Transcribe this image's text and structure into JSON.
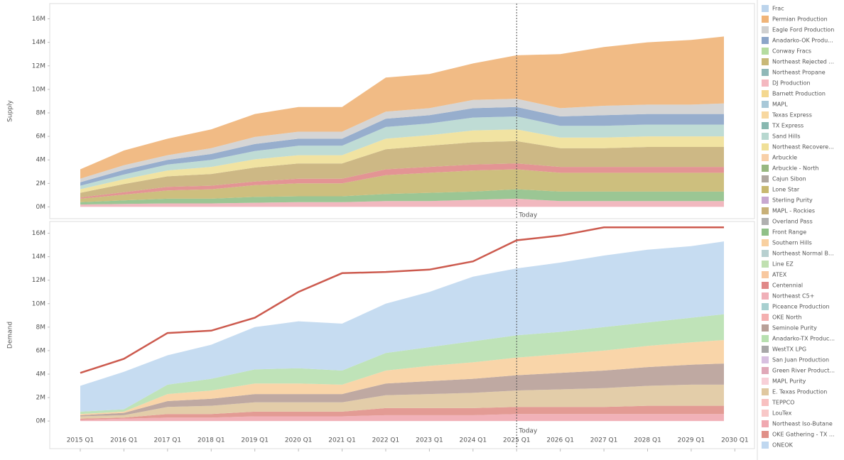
{
  "legend": {
    "items": [
      {
        "name": "Frac",
        "color": "#bcd4ec"
      },
      {
        "name": "Permian Production",
        "color": "#f0b478"
      },
      {
        "name": "Eagle Ford Production",
        "color": "#d0d0d0"
      },
      {
        "name": "Anadarko-OK Produ...",
        "color": "#8ca5c8"
      },
      {
        "name": "Conway Fracs",
        "color": "#b5dca0"
      },
      {
        "name": "Northeast Rejected ...",
        "color": "#c8b878"
      },
      {
        "name": "Northeast Propane",
        "color": "#90b8b8"
      },
      {
        "name": "DJ Production",
        "color": "#f4b8c0"
      },
      {
        "name": "Barnett Production",
        "color": "#f4d890"
      },
      {
        "name": "MAPL",
        "color": "#a8c8d8"
      },
      {
        "name": "Texas Express",
        "color": "#f8d8a0"
      },
      {
        "name": "TX Express",
        "color": "#88b8b0"
      },
      {
        "name": "Sand Hills",
        "color": "#b8d8d0"
      },
      {
        "name": "Northeast Recovere...",
        "color": "#f0e098"
      },
      {
        "name": "Arbuckle",
        "color": "#f8d0a8"
      },
      {
        "name": "Arbuckle - North",
        "color": "#98b880"
      },
      {
        "name": "Cajun Sibon",
        "color": "#b0a8a0"
      },
      {
        "name": "Lone Star",
        "color": "#c8b870"
      },
      {
        "name": "Sterling Purity",
        "color": "#c8a8d0"
      },
      {
        "name": "MAPL - Rockies",
        "color": "#c8b078"
      },
      {
        "name": "Overland Pass",
        "color": "#b0b0b0"
      },
      {
        "name": "Front Range",
        "color": "#90c088"
      },
      {
        "name": "Southern Hills",
        "color": "#f8d0a0"
      },
      {
        "name": "Northeast Normal B...",
        "color": "#b8d0d0"
      },
      {
        "name": "Line EZ",
        "color": "#c0e0b0"
      },
      {
        "name": "ATEX",
        "color": "#f8c8a0"
      },
      {
        "name": "Centennial",
        "color": "#e08888"
      },
      {
        "name": "Northeast C5+",
        "color": "#f0b0b8"
      },
      {
        "name": "Piceance Production",
        "color": "#a8d0d0"
      },
      {
        "name": "OKE North",
        "color": "#f4b0b0"
      },
      {
        "name": "Seminole Purity",
        "color": "#b8a098"
      },
      {
        "name": "Anadarko-TX Produc...",
        "color": "#b8e0b0"
      },
      {
        "name": "WestTX LPG",
        "color": "#a8a8a8"
      },
      {
        "name": "San Juan Production",
        "color": "#d8c0e0"
      },
      {
        "name": "Green River Product...",
        "color": "#e0a8b8"
      },
      {
        "name": "MAPL Purity",
        "color": "#f8d0d8"
      },
      {
        "name": "E. Texas Production",
        "color": "#e0c8a0"
      },
      {
        "name": "TEPPCO",
        "color": "#f8c0c0"
      },
      {
        "name": "LouTex",
        "color": "#f8c8c8"
      },
      {
        "name": "Northeast Iso-Butane",
        "color": "#f0a8b0"
      },
      {
        "name": "OKE Gathering - TX ...",
        "color": "#e09088"
      },
      {
        "name": "ONEOK",
        "color": "#c0d8f0"
      }
    ]
  },
  "chart_data": [
    {
      "type": "area",
      "stacked": true,
      "y_label": "Supply",
      "xlim": [
        2014.3,
        2030.45
      ],
      "ylim": [
        -1000000,
        17300000
      ],
      "yticks": [
        {
          "value": 0,
          "label": "0M"
        },
        {
          "value": 2000000,
          "label": "2M"
        },
        {
          "value": 4000000,
          "label": "4M"
        },
        {
          "value": 6000000,
          "label": "6M"
        },
        {
          "value": 8000000,
          "label": "8M"
        },
        {
          "value": 10000000,
          "label": "10M"
        },
        {
          "value": 12000000,
          "label": "12M"
        },
        {
          "value": 14000000,
          "label": "14M"
        },
        {
          "value": 16000000,
          "label": "16M"
        }
      ],
      "annotation": {
        "label": "Today",
        "x": 2025
      },
      "x": [
        2015,
        2016,
        2017,
        2018,
        2019,
        2020,
        2021,
        2022,
        2023,
        2024,
        2025,
        2026,
        2027,
        2028,
        2029,
        2029.75
      ],
      "series": [
        {
          "name": "Northeast C5+",
          "color": "#f0b0b8",
          "values": [
            200000,
            250000,
            300000,
            300000,
            350000,
            400000,
            400000,
            500000,
            500000,
            600000,
            700000,
            500000,
            500000,
            500000,
            500000,
            500000
          ]
        },
        {
          "name": "Front Range",
          "color": "#90c088",
          "values": [
            200000,
            300000,
            400000,
            400000,
            500000,
            500000,
            500000,
            600000,
            700000,
            700000,
            800000,
            800000,
            800000,
            800000,
            800000,
            800000
          ]
        },
        {
          "name": "Lone Star",
          "color": "#c8b870",
          "values": [
            300000,
            500000,
            700000,
            800000,
            1000000,
            1100000,
            1100000,
            1600000,
            1700000,
            1800000,
            1700000,
            1600000,
            1600000,
            1600000,
            1600000,
            1600000
          ]
        },
        {
          "name": "Centennial",
          "color": "#e08888",
          "values": [
            100000,
            200000,
            300000,
            300000,
            300000,
            400000,
            400000,
            500000,
            500000,
            500000,
            500000,
            500000,
            500000,
            500000,
            500000,
            500000
          ]
        },
        {
          "name": "MAPL - Rockies",
          "color": "#c8b078",
          "values": [
            400000,
            700000,
            900000,
            1000000,
            1200000,
            1300000,
            1300000,
            1700000,
            1800000,
            1900000,
            1900000,
            1600000,
            1600000,
            1700000,
            1700000,
            1700000
          ]
        },
        {
          "name": "Northeast Recovere...",
          "color": "#f0e098",
          "values": [
            300000,
            400000,
            500000,
            600000,
            700000,
            700000,
            700000,
            900000,
            900000,
            1000000,
            1000000,
            900000,
            900000,
            900000,
            900000,
            900000
          ]
        },
        {
          "name": "Sand Hills",
          "color": "#b8d8d0",
          "values": [
            300000,
            400000,
            500000,
            600000,
            700000,
            800000,
            800000,
            1000000,
            1000000,
            1100000,
            1100000,
            1000000,
            1000000,
            1000000,
            1000000,
            1000000
          ]
        },
        {
          "name": "Anadarko-OK Produ...",
          "color": "#8ca5c8",
          "values": [
            300000,
            400000,
            400000,
            500000,
            600000,
            600000,
            600000,
            700000,
            700000,
            800000,
            800000,
            800000,
            900000,
            900000,
            900000,
            900000
          ]
        },
        {
          "name": "Eagle Ford Production",
          "color": "#d0d0d0",
          "values": [
            300000,
            400000,
            400000,
            500000,
            600000,
            600000,
            600000,
            600000,
            600000,
            700000,
            700000,
            700000,
            800000,
            800000,
            800000,
            900000
          ]
        },
        {
          "name": "Permian Production",
          "color": "#f0b478",
          "values": [
            800000,
            1250000,
            1400000,
            1600000,
            1950000,
            2100000,
            2100000,
            2900000,
            2900000,
            3100000,
            3700000,
            4600000,
            5000000,
            5300000,
            5500000,
            5700000
          ]
        }
      ]
    },
    {
      "type": "area",
      "stacked": true,
      "y_label": "Demand",
      "xlim": [
        2014.3,
        2030.45
      ],
      "ylim": [
        -2350000,
        17000000
      ],
      "yticks": [
        {
          "value": 0,
          "label": "0M"
        },
        {
          "value": 2000000,
          "label": "2M"
        },
        {
          "value": 4000000,
          "label": "4M"
        },
        {
          "value": 6000000,
          "label": "6M"
        },
        {
          "value": 8000000,
          "label": "8M"
        },
        {
          "value": 10000000,
          "label": "10M"
        },
        {
          "value": 12000000,
          "label": "12M"
        },
        {
          "value": 14000000,
          "label": "14M"
        },
        {
          "value": 16000000,
          "label": "16M"
        }
      ],
      "xticks": [
        {
          "value": 2015,
          "label": "2015 Q1"
        },
        {
          "value": 2016,
          "label": "2016 Q1"
        },
        {
          "value": 2017,
          "label": "2017 Q1"
        },
        {
          "value": 2018,
          "label": "2018 Q1"
        },
        {
          "value": 2019,
          "label": "2019 Q1"
        },
        {
          "value": 2020,
          "label": "2020 Q1"
        },
        {
          "value": 2021,
          "label": "2021 Q1"
        },
        {
          "value": 2022,
          "label": "2022 Q1"
        },
        {
          "value": 2023,
          "label": "2023 Q1"
        },
        {
          "value": 2024,
          "label": "2024 Q1"
        },
        {
          "value": 2025,
          "label": "2025 Q1"
        },
        {
          "value": 2026,
          "label": "2026 Q1"
        },
        {
          "value": 2027,
          "label": "2027 Q1"
        },
        {
          "value": 2028,
          "label": "2028 Q1"
        },
        {
          "value": 2029,
          "label": "2029 Q1"
        },
        {
          "value": 2030,
          "label": "2030 Q1"
        }
      ],
      "annotation": {
        "label": "Today",
        "x": 2025
      },
      "x": [
        2015,
        2016,
        2017,
        2018,
        2019,
        2020,
        2021,
        2022,
        2023,
        2024,
        2025,
        2026,
        2027,
        2028,
        2029,
        2029.75
      ],
      "series": [
        {
          "name": "Northeast Iso-Butane",
          "color": "#f0a8b0",
          "values": [
            100000,
            200000,
            300000,
            300000,
            400000,
            400000,
            400000,
            500000,
            500000,
            500000,
            600000,
            600000,
            600000,
            600000,
            600000,
            600000
          ]
        },
        {
          "name": "OKE Gathering - TX ...",
          "color": "#e09088",
          "values": [
            100000,
            100000,
            300000,
            300000,
            400000,
            400000,
            400000,
            600000,
            600000,
            600000,
            600000,
            600000,
            600000,
            700000,
            700000,
            700000
          ]
        },
        {
          "name": "E. Texas Production",
          "color": "#e0c8a0",
          "values": [
            200000,
            200000,
            600000,
            700000,
            800000,
            800000,
            800000,
            1100000,
            1200000,
            1300000,
            1400000,
            1500000,
            1600000,
            1700000,
            1800000,
            1800000
          ]
        },
        {
          "name": "Seminole Purity",
          "color": "#b8a098",
          "values": [
            100000,
            200000,
            500000,
            600000,
            700000,
            700000,
            700000,
            1000000,
            1100000,
            1200000,
            1300000,
            1400000,
            1500000,
            1600000,
            1700000,
            1800000
          ]
        },
        {
          "name": "Southern Hills",
          "color": "#f8d0a0",
          "values": [
            100000,
            100000,
            600000,
            700000,
            900000,
            900000,
            800000,
            1100000,
            1300000,
            1400000,
            1500000,
            1600000,
            1700000,
            1800000,
            1900000,
            2000000
          ]
        },
        {
          "name": "Anadarko-TX Produc...",
          "color": "#b8e0b0",
          "values": [
            200000,
            200000,
            800000,
            1000000,
            1200000,
            1300000,
            1200000,
            1500000,
            1600000,
            1800000,
            1900000,
            1900000,
            2000000,
            2000000,
            2100000,
            2200000
          ]
        },
        {
          "name": "ONEOK",
          "color": "#c0d8f0",
          "values": [
            2200000,
            3200000,
            2500000,
            2900000,
            3600000,
            4000000,
            4000000,
            4200000,
            4700000,
            5500000,
            5700000,
            5900000,
            6100000,
            6200000,
            6100000,
            6200000
          ]
        }
      ],
      "line": {
        "color": "#cc5a4e",
        "values": [
          4100000,
          5300000,
          7500000,
          7700000,
          8800000,
          11000000,
          12600000,
          12700000,
          12900000,
          13600000,
          15400000,
          15800000,
          16500000,
          16500000,
          16500000,
          16500000
        ]
      }
    }
  ]
}
